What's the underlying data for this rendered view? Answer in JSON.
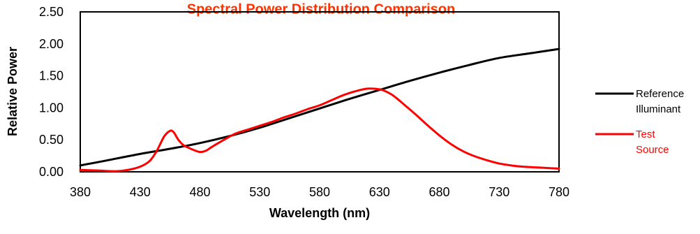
{
  "colors": {
    "reference": "#000000",
    "test": "#ff0000",
    "title": "#ff3300"
  },
  "chart_data": {
    "type": "line",
    "title": "Spectral Power Distribution Comparison",
    "xlabel": "Wavelength (nm)",
    "ylabel": "Relative Power",
    "xlim": [
      380,
      780
    ],
    "ylim": [
      0,
      2.5
    ],
    "x_ticks": [
      "380",
      "430",
      "480",
      "530",
      "580",
      "630",
      "680",
      "730",
      "780"
    ],
    "y_ticks": [
      "0.00",
      "0.50",
      "1.00",
      "1.50",
      "2.00",
      "2.50"
    ],
    "grid": false,
    "legend_position": "right",
    "series": [
      {
        "name": "Reference Illuminant",
        "legend_lines": [
          "Reference",
          "Illuminant"
        ],
        "color": "#000000",
        "x": [
          380,
          400,
          430,
          455,
          480,
          505,
          530,
          555,
          580,
          605,
          630,
          655,
          680,
          705,
          730,
          755,
          780
        ],
        "y": [
          0.1,
          0.17,
          0.28,
          0.36,
          0.45,
          0.56,
          0.69,
          0.84,
          0.99,
          1.14,
          1.28,
          1.42,
          1.55,
          1.67,
          1.78,
          1.85,
          1.92
        ]
      },
      {
        "name": "Test Source",
        "legend_lines": [
          "Test",
          "Source"
        ],
        "color": "#ff0000",
        "x": [
          380,
          395,
          410,
          420,
          430,
          438,
          444,
          450,
          455,
          458,
          462,
          466,
          470,
          475,
          480,
          485,
          490,
          500,
          510,
          520,
          530,
          540,
          550,
          560,
          570,
          580,
          590,
          600,
          610,
          620,
          630,
          635,
          640,
          645,
          650,
          660,
          670,
          680,
          690,
          700,
          710,
          720,
          730,
          740,
          750,
          760,
          770,
          780
        ],
        "y": [
          0.03,
          0.02,
          0.01,
          0.03,
          0.08,
          0.17,
          0.33,
          0.55,
          0.64,
          0.62,
          0.5,
          0.42,
          0.38,
          0.34,
          0.31,
          0.33,
          0.39,
          0.5,
          0.6,
          0.66,
          0.72,
          0.78,
          0.85,
          0.91,
          0.98,
          1.04,
          1.12,
          1.2,
          1.26,
          1.3,
          1.29,
          1.26,
          1.21,
          1.14,
          1.06,
          0.9,
          0.73,
          0.57,
          0.43,
          0.32,
          0.24,
          0.18,
          0.13,
          0.1,
          0.08,
          0.07,
          0.06,
          0.05
        ]
      }
    ]
  }
}
